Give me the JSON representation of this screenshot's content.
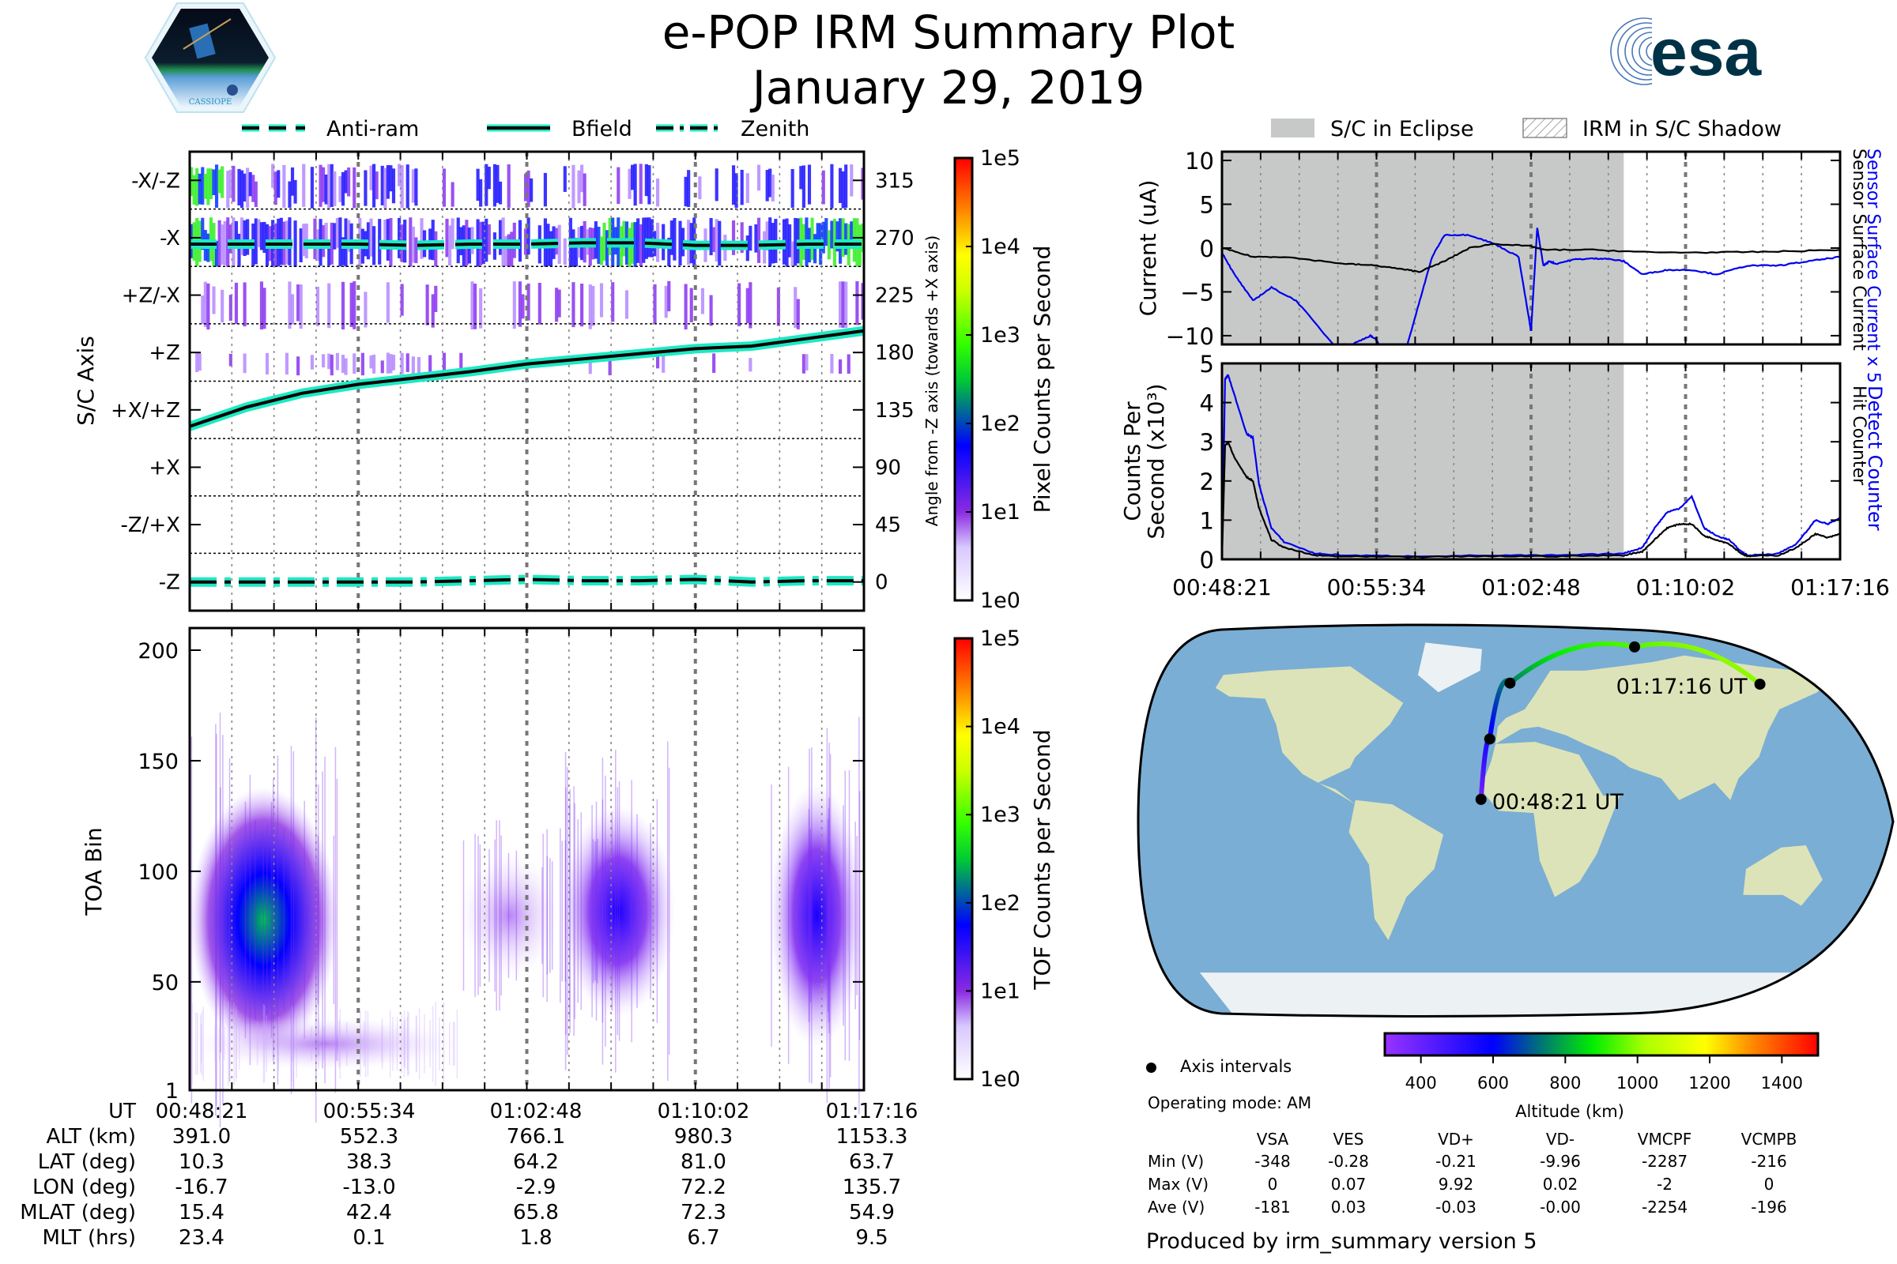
{
  "header": {
    "title": "e-POP IRM Summary Plot",
    "date": "January 29, 2019",
    "left_logo": "CASSIOPE",
    "right_logo": "esa"
  },
  "legend_left": [
    {
      "label": "Anti-ram",
      "style": "dashed",
      "color": "#1de9c3"
    },
    {
      "label": "Bfield",
      "style": "solid",
      "color": "#1de9c3"
    },
    {
      "label": "Zenith",
      "style": "dashdot",
      "color": "#1de9c3"
    }
  ],
  "legend_right": [
    {
      "label": "S/C in Eclipse",
      "style": "fill",
      "color": "#c7c9c8"
    },
    {
      "label": "IRM in S/C Shadow",
      "style": "hatch",
      "color": "#888888"
    }
  ],
  "time_ticks": [
    "00:48:21",
    "00:55:34",
    "01:02:48",
    "01:10:02",
    "01:17:16"
  ],
  "chart_data": [
    {
      "id": "pixel-panel",
      "type": "heatmap",
      "ylabel": "S/C Axis",
      "ylabel_right": "Angle from -Z axis (towards +X axis)",
      "y_categories": [
        "-X/-Z",
        "-X",
        "+Z/-X",
        "+Z",
        "+X/+Z",
        "+X",
        "-Z/+X",
        "-Z"
      ],
      "y_right_ticks": [
        315,
        270,
        225,
        180,
        135,
        90,
        45,
        0
      ],
      "ylim": [
        -22.5,
        337.5
      ],
      "colorbar": {
        "label": "Pixel Counts per Second",
        "ticks": [
          "1e0",
          "1e1",
          "1e2",
          "1e3",
          "1e4",
          "1e5"
        ],
        "scale": "log"
      },
      "lines": [
        {
          "name": "Anti-ram",
          "angle_deg": [
            265,
            265,
            265,
            265,
            264,
            265,
            265,
            266,
            266,
            264,
            264,
            265,
            265
          ]
        },
        {
          "name": "Bfield",
          "angle_deg": [
            122,
            137,
            148,
            155,
            160,
            165,
            171,
            175,
            179,
            183,
            185,
            191,
            197
          ]
        },
        {
          "name": "Zenith",
          "angle_deg": [
            0,
            0,
            0,
            0,
            0,
            1,
            2,
            1,
            1,
            2,
            0,
            1,
            1
          ]
        }
      ],
      "bands": [
        {
          "range": [
            293,
            328
          ],
          "intensity": "high-early, moderate throughout"
        },
        {
          "range": [
            247,
            286
          ],
          "intensity": "high (green) early and at 01:06-01:10 and end"
        },
        {
          "range": [
            198,
            236
          ],
          "intensity": "low sparse"
        },
        {
          "range": [
            162,
            180
          ],
          "intensity": "low sparse early"
        }
      ]
    },
    {
      "id": "tof-panel",
      "type": "heatmap",
      "ylabel": "TOA Bin",
      "y_ticks": [
        1,
        50,
        100,
        150,
        200
      ],
      "ylim": [
        1,
        210
      ],
      "colorbar": {
        "label": "TOF Counts per Second",
        "ticks": [
          "1e0",
          "1e1",
          "1e2",
          "1e3",
          "1e4",
          "1e5"
        ],
        "scale": "log"
      },
      "clusters": [
        {
          "t_frac": [
            0.0,
            0.22
          ],
          "bin_center": 78,
          "spread": 25,
          "peak": "1e2"
        },
        {
          "t_frac": [
            0.4,
            0.55
          ],
          "bin_center": 80,
          "spread": 12,
          "peak": "1e1"
        },
        {
          "t_frac": [
            0.55,
            0.72
          ],
          "bin_center": 82,
          "spread": 20,
          "peak": "5e1"
        },
        {
          "t_frac": [
            0.86,
            1.0
          ],
          "bin_center": 80,
          "spread": 25,
          "peak": "5e1"
        },
        {
          "t_frac": [
            0.0,
            0.4
          ],
          "bin_center": 22,
          "spread": 5,
          "peak": "3e0"
        }
      ]
    },
    {
      "id": "current-panel",
      "type": "line",
      "ylabel": "Current (uA)",
      "ylim": [
        -11,
        11
      ],
      "y_ticks": [
        10,
        5,
        0,
        -5,
        -10
      ],
      "eclipse_until_frac": 0.65,
      "series": [
        {
          "name": "Sensor Surface Current x 5",
          "color": "#0000ee",
          "x_frac": [
            0.0,
            0.02,
            0.05,
            0.08,
            0.12,
            0.18,
            0.21,
            0.24,
            0.25,
            0.27,
            0.28,
            0.3,
            0.32,
            0.34,
            0.36,
            0.4,
            0.44,
            0.48,
            0.5,
            0.51,
            0.52,
            0.53,
            0.54,
            0.57,
            0.6,
            0.62,
            0.65,
            0.68,
            0.72,
            0.76,
            0.8,
            0.85,
            0.9,
            0.95,
            1.0
          ],
          "y": [
            -0.5,
            -3,
            -6,
            -4.5,
            -6,
            -11,
            -11,
            -10,
            -10.5,
            -13,
            -13,
            -11,
            -6,
            -1,
            1.5,
            1.5,
            0.5,
            -1,
            -9.5,
            2.3,
            -2,
            -1.5,
            -1.8,
            -1.3,
            -1.2,
            -1.2,
            -1.5,
            -3,
            -2.5,
            -2.5,
            -3,
            -2,
            -2,
            -1.5,
            -1
          ]
        },
        {
          "name": "Sensor Surface Current",
          "color": "#000000",
          "x_frac": [
            0.0,
            0.05,
            0.1,
            0.2,
            0.25,
            0.3,
            0.32,
            0.36,
            0.4,
            0.44,
            0.5,
            0.52,
            0.6,
            0.7,
            0.8,
            0.9,
            1.0
          ],
          "y": [
            0,
            -1,
            -1,
            -1.8,
            -2,
            -2.5,
            -2.7,
            -1.5,
            0,
            0.5,
            0.2,
            -0.2,
            -0.2,
            -0.5,
            -0.5,
            -0.4,
            -0.2
          ]
        }
      ]
    },
    {
      "id": "counts-panel",
      "type": "line",
      "ylabel": "Counts Per Second (x10^3)",
      "ylim": [
        0,
        5
      ],
      "y_ticks": [
        5,
        4,
        3,
        2,
        1,
        0
      ],
      "eclipse_until_frac": 0.65,
      "series": [
        {
          "name": "Detect Counter",
          "color": "#0000ee",
          "x_frac": [
            0.0,
            0.005,
            0.01,
            0.02,
            0.04,
            0.05,
            0.06,
            0.08,
            0.1,
            0.15,
            0.2,
            0.3,
            0.45,
            0.55,
            0.65,
            0.68,
            0.7,
            0.72,
            0.74,
            0.76,
            0.78,
            0.8,
            0.82,
            0.84,
            0.85,
            0.9,
            0.93,
            0.96,
            0.98,
            1.0
          ],
          "y": [
            0,
            4.6,
            4.7,
            4.2,
            3.2,
            3.1,
            1.9,
            0.8,
            0.45,
            0.15,
            0.1,
            0.08,
            0.1,
            0.1,
            0.15,
            0.3,
            0.8,
            1.2,
            1.3,
            1.6,
            0.8,
            0.6,
            0.5,
            0.2,
            0.1,
            0.15,
            0.4,
            1.0,
            0.9,
            1.05
          ]
        },
        {
          "name": "Hit Counter",
          "color": "#000000",
          "x_frac": [
            0.0,
            0.005,
            0.01,
            0.02,
            0.04,
            0.05,
            0.06,
            0.08,
            0.1,
            0.15,
            0.2,
            0.3,
            0.45,
            0.55,
            0.65,
            0.68,
            0.7,
            0.72,
            0.74,
            0.76,
            0.78,
            0.8,
            0.82,
            0.84,
            0.85,
            0.9,
            0.93,
            0.96,
            0.98,
            1.0
          ],
          "y": [
            0,
            2.9,
            3.0,
            2.6,
            2.1,
            2.0,
            1.3,
            0.5,
            0.3,
            0.1,
            0.07,
            0.06,
            0.08,
            0.08,
            0.1,
            0.2,
            0.5,
            0.8,
            0.9,
            0.9,
            0.6,
            0.5,
            0.4,
            0.15,
            0.08,
            0.1,
            0.3,
            0.65,
            0.55,
            0.65
          ]
        }
      ],
      "right_label_detect": "Detect Counter",
      "right_label_hit": "Hit Counter"
    },
    {
      "id": "ground-track-map",
      "type": "scatter",
      "title": "",
      "points": [
        {
          "time": "00:48:21",
          "lat": 10.3,
          "lon": -16.7,
          "alt_km": 391.0
        },
        {
          "time": "00:55:34",
          "lat": 38.3,
          "lon": -13.0,
          "alt_km": 552.3
        },
        {
          "time": "01:02:48",
          "lat": 64.2,
          "lon": -2.9,
          "alt_km": 766.1
        },
        {
          "time": "01:10:02",
          "lat": 81.0,
          "lon": 72.2,
          "alt_km": 980.3
        },
        {
          "time": "01:17:16",
          "lat": 63.7,
          "lon": 135.7,
          "alt_km": 1153.3
        }
      ],
      "start_label": "00:48:21 UT",
      "end_label": "01:17:16 UT",
      "colorbar": {
        "label": "Altitude (km)",
        "ticks": [
          400,
          600,
          800,
          1000,
          1200,
          1400
        ],
        "range": [
          300,
          1500
        ]
      }
    }
  ],
  "ephemeris_table": {
    "rows": [
      {
        "label": "UT",
        "values": [
          "00:48:21",
          "00:55:34",
          "01:02:48",
          "01:10:02",
          "01:17:16"
        ]
      },
      {
        "label": "ALT (km)",
        "values": [
          "391.0",
          "552.3",
          "766.1",
          "980.3",
          "1153.3"
        ]
      },
      {
        "label": "LAT (deg)",
        "values": [
          "10.3",
          "38.3",
          "64.2",
          "81.0",
          "63.7"
        ]
      },
      {
        "label": "LON (deg)",
        "values": [
          "-16.7",
          "-13.0",
          "-2.9",
          "72.2",
          "135.7"
        ]
      },
      {
        "label": "MLAT (deg)",
        "values": [
          "15.4",
          "42.4",
          "65.8",
          "72.3",
          "54.9"
        ]
      },
      {
        "label": "MLT (hrs)",
        "values": [
          "23.4",
          "0.1",
          "1.8",
          "6.7",
          "9.5"
        ]
      }
    ]
  },
  "map_legend": {
    "marker_label": "Axis intervals",
    "operating_mode": "Operating mode: AM"
  },
  "voltage_table": {
    "columns": [
      "VSA",
      "VES",
      "VD+",
      "VD-",
      "VMCPF",
      "VCMPB"
    ],
    "rows": [
      {
        "label": "Min (V)",
        "values": [
          "-348",
          "-0.28",
          "-0.21",
          "-9.96",
          "-2287",
          "-216"
        ]
      },
      {
        "label": "Max (V)",
        "values": [
          "0",
          "0.07",
          "9.92",
          "0.02",
          "-2",
          "0"
        ]
      },
      {
        "label": "Ave (V)",
        "values": [
          "-181",
          "0.03",
          "-0.03",
          "-0.00",
          "-2254",
          "-196"
        ]
      }
    ]
  },
  "footer": "Produced by irm_summary version 5"
}
